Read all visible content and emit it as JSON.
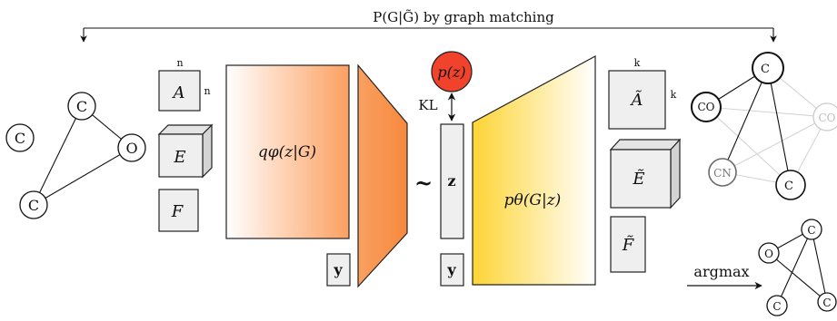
{
  "top_arrow": {
    "label": "P(G|G̃) by graph matching"
  },
  "input_graph": {
    "nodes": [
      "C",
      "C",
      "O",
      "C"
    ]
  },
  "input_tensors": {
    "A_label": "A",
    "E_label": "E",
    "F_label": "F",
    "A_dim_top": "n",
    "A_dim_side": "n"
  },
  "encoder": {
    "label": "qφ(z|G)",
    "condition": "y"
  },
  "latent": {
    "prior": "p(z)",
    "kl": "KL",
    "z": "z",
    "sample_symbol": "~",
    "condition": "y"
  },
  "decoder": {
    "label": "pθ(G|z)"
  },
  "output_tensors": {
    "A_label": "Ã",
    "E_label": "Ẽ",
    "F_label": "F̃",
    "A_dim_top": "k",
    "A_dim_side": "k"
  },
  "prob_graph": {
    "nodes": [
      "C",
      "CO",
      "CO",
      "CN",
      "C"
    ]
  },
  "output_graph": {
    "argmax": "argmax",
    "nodes": [
      "C",
      "O",
      "C",
      "C"
    ]
  },
  "colors": {
    "encoder": "#fca060",
    "encoder_trap": "#f98c45",
    "decoder": "#fdd534",
    "prior": "#f1432b"
  }
}
